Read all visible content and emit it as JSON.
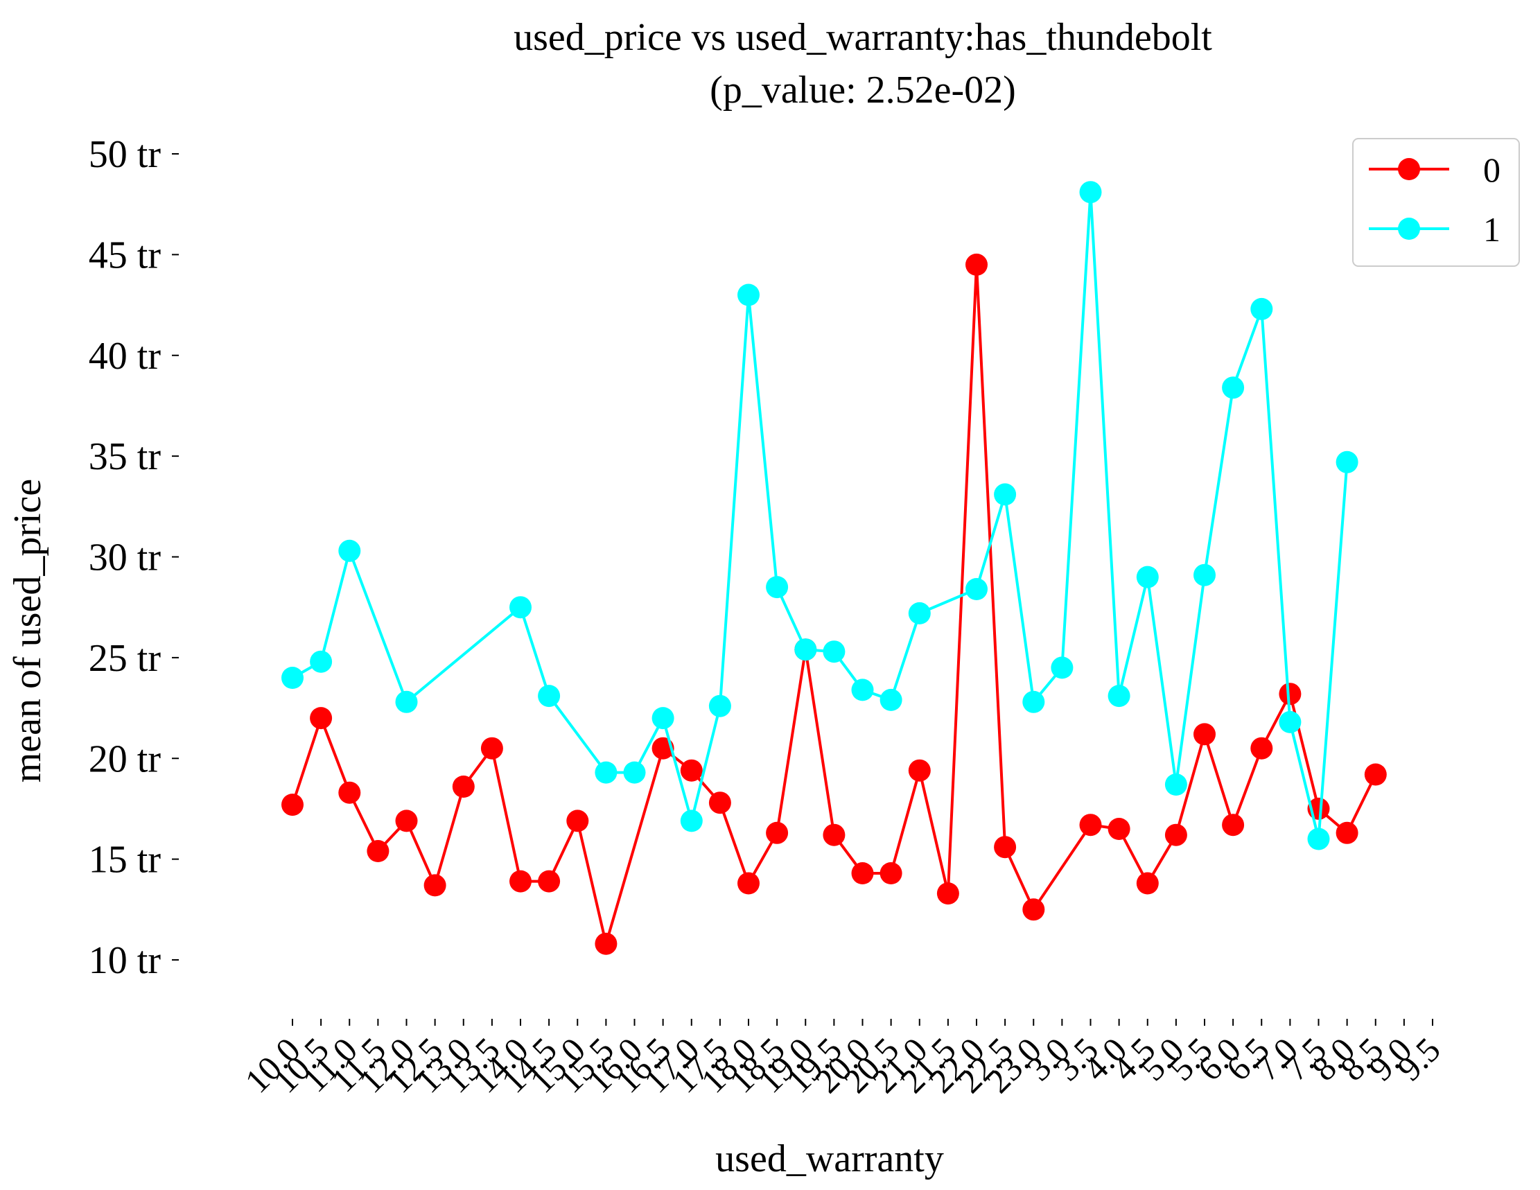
{
  "chart_data": {
    "type": "line",
    "title_line1": "used_price vs used_warranty:has_thundebolt",
    "title_line2": "(p_value: 2.52e-02)",
    "xlabel": "used_warranty",
    "ylabel": "mean of used_price",
    "ylim": [
      8,
      51
    ],
    "y_ticks": [
      10,
      15,
      20,
      25,
      30,
      35,
      40,
      45,
      50
    ],
    "y_tick_labels": [
      "10 tr",
      "15 tr",
      "20 tr",
      "25 tr",
      "30 tr",
      "35 tr",
      "40 tr",
      "45 tr",
      "50 tr"
    ],
    "categories": [
      "10.0",
      "10.5",
      "11.0",
      "11.5",
      "12.0",
      "12.5",
      "13.0",
      "13.5",
      "14.0",
      "14.5",
      "15.0",
      "15.5",
      "16.0",
      "16.5",
      "17.0",
      "17.5",
      "18.0",
      "18.5",
      "19.0",
      "19.5",
      "20.0",
      "20.5",
      "21.0",
      "21.5",
      "22.0",
      "22.5",
      "23.0",
      "3.0",
      "3.5",
      "4.0",
      "4.5",
      "5.0",
      "5.5",
      "6.0",
      "6.5",
      "7.0",
      "7.5",
      "8.0",
      "8.5",
      "9.0",
      "9.5"
    ],
    "x_tick_labels": [
      "10.0",
      "10.5",
      "11.0",
      "11.5",
      "12.0",
      "12.5",
      "13.0",
      "13.5",
      "14.0",
      "14.5",
      "15.0",
      "15.5",
      "16.0",
      "16.5",
      "17.0",
      "17.5",
      "18.0",
      "18.5",
      "19.0",
      "19.5",
      "20.0",
      "20.5",
      "21.0",
      "21.5",
      "22.0",
      "22.5",
      "23.0",
      "3.0",
      "3.5",
      "4.0",
      "4.5",
      "5.0",
      "5.5",
      "6.0",
      "6.5",
      "7.0",
      "7.5",
      "8.0",
      "8.5",
      "9.0",
      "9.5"
    ],
    "series": [
      {
        "name": "0",
        "color": "#ff0000",
        "values": [
          17.7,
          22.0,
          18.3,
          15.4,
          16.9,
          13.7,
          18.6,
          20.5,
          13.9,
          13.9,
          16.9,
          10.8,
          null,
          20.5,
          19.4,
          17.8,
          13.8,
          16.3,
          25.4,
          16.2,
          14.3,
          14.3,
          19.4,
          13.3,
          44.5,
          15.6,
          12.5,
          null,
          16.7,
          16.5,
          13.8,
          16.2,
          21.2,
          16.7,
          20.5,
          23.2,
          17.5,
          16.3,
          19.2,
          null,
          null
        ]
      },
      {
        "name": "1",
        "color": "#00ffff",
        "values": [
          24.0,
          24.8,
          30.3,
          null,
          22.8,
          null,
          null,
          null,
          27.5,
          23.1,
          null,
          19.3,
          19.3,
          22.0,
          16.9,
          22.6,
          43.0,
          28.5,
          25.4,
          25.3,
          23.4,
          22.9,
          27.2,
          null,
          28.4,
          33.1,
          22.8,
          24.5,
          48.1,
          23.1,
          29.0,
          18.7,
          29.1,
          38.4,
          42.3,
          21.8,
          16.0,
          34.7,
          null,
          null,
          null
        ]
      }
    ],
    "legend": {
      "position": "top-right",
      "labels": [
        "0",
        "1"
      ]
    },
    "grid": false
  }
}
